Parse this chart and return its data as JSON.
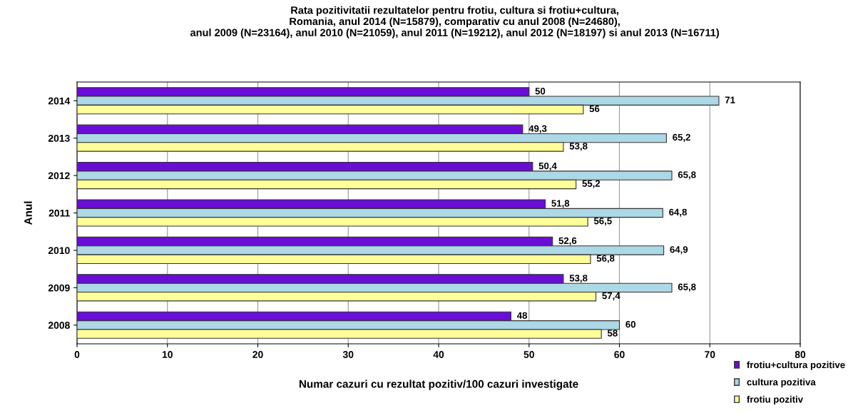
{
  "chart_data": {
    "type": "bar",
    "orientation": "horizontal",
    "title": "Rata pozitivitatii rezultatelor pentru frotiu, cultura si frotiu+cultura,\nRomania, anul 2014 (N=15879), comparativ cu anul 2008 (N=24680),\nanul 2009 (N=23164), anul 2010 (N=21059), anul 2011 (N=19212), anul 2012 (N=18197) si anul 2013 (N=16711)",
    "xlabel": "Numar cazuri cu rezultat pozitiv/100 cazuri investigate",
    "ylabel": "Anul",
    "categories": [
      "2014",
      "2013",
      "2012",
      "2011",
      "2010",
      "2009",
      "2008"
    ],
    "series": [
      {
        "name": "frotiu+cultura pozitive",
        "color": "#6a0dd6",
        "values": [
          50,
          49.3,
          50.4,
          51.8,
          52.6,
          53.8,
          48
        ],
        "value_labels": [
          "50",
          "49,3",
          "50,4",
          "51,8",
          "52,6",
          "53,8",
          "48"
        ]
      },
      {
        "name": "cultura pozitiva",
        "color": "#add8e6",
        "values": [
          71,
          65.2,
          65.8,
          64.8,
          64.9,
          65.8,
          60
        ],
        "value_labels": [
          "71",
          "65,2",
          "65,8",
          "64,8",
          "64,9",
          "65,8",
          "60"
        ]
      },
      {
        "name": "frotiu pozitiv",
        "color": "#ffff99",
        "values": [
          56,
          53.8,
          55.2,
          56.5,
          56.8,
          57.4,
          58
        ],
        "value_labels": [
          "56",
          "53,8",
          "55,2",
          "56,5",
          "56,8",
          "57,4",
          "58"
        ]
      }
    ],
    "xlim": [
      0,
      80
    ],
    "xticks": [
      0,
      10,
      20,
      30,
      40,
      50,
      60,
      70,
      80
    ],
    "grid": "x",
    "legend": "bottom right"
  }
}
